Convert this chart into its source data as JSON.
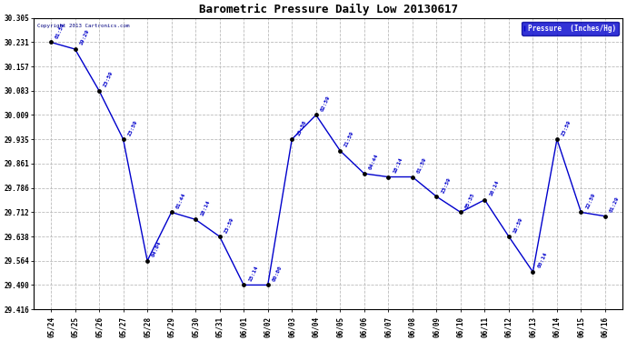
{
  "title": "Barometric Pressure Daily Low 20130617",
  "ylabel": "Pressure  (Inches/Hg)",
  "copyright_text": "Copyright 2013 Cartronics.com",
  "line_color": "#0000CC",
  "marker_color": "#000000",
  "background_color": "#ffffff",
  "plot_bg_color": "#ffffff",
  "grid_color": "#bbbbbb",
  "legend_bg": "#0000CC",
  "legend_text_color": "#ffffff",
  "ylim_min": 29.416,
  "ylim_max": 30.305,
  "yticks": [
    29.416,
    29.49,
    29.564,
    29.638,
    29.712,
    29.786,
    29.861,
    29.935,
    30.009,
    30.083,
    30.157,
    30.231,
    30.305
  ],
  "x_labels": [
    "05/24",
    "05/25",
    "05/26",
    "05/27",
    "05/28",
    "05/29",
    "05/30",
    "05/31",
    "06/01",
    "06/02",
    "06/03",
    "06/04",
    "06/05",
    "06/06",
    "06/07",
    "06/08",
    "06/09",
    "06/10",
    "06/11",
    "06/12",
    "06/13",
    "06/14",
    "06/15",
    "06/16"
  ],
  "times": [
    "01:59",
    "19:29",
    "23:59",
    "23:59",
    "04:04",
    "01:44",
    "18:14",
    "23:59",
    "15:14",
    "00:00",
    "15:56",
    "02:59",
    "21:59",
    "04:44",
    "18:14",
    "01:59",
    "23:59",
    "05:35",
    "16:14",
    "18:59",
    "00:14",
    "23:59",
    "22:59",
    "01:29"
  ],
  "values": [
    30.231,
    30.21,
    30.083,
    29.935,
    29.564,
    29.712,
    29.69,
    29.638,
    29.49,
    29.49,
    29.935,
    30.009,
    29.9,
    29.83,
    29.82,
    29.82,
    29.76,
    29.712,
    29.75,
    29.638,
    29.53,
    29.935,
    29.712,
    29.7
  ]
}
